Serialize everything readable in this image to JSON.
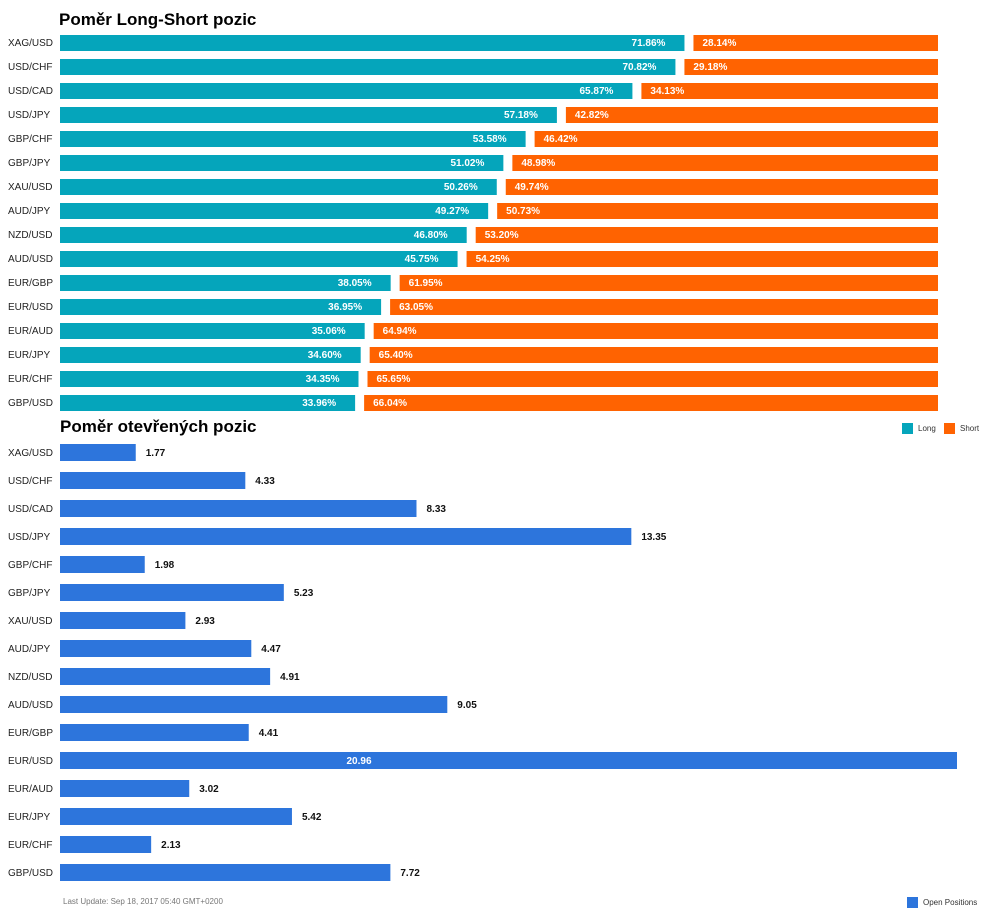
{
  "colors": {
    "long": "#05a5bb",
    "short": "#ff6301",
    "open": "#2d75dc"
  },
  "chart_data": [
    {
      "type": "bar",
      "orientation": "horizontal",
      "stacked": true,
      "title": "Poměr Long-Short pozic",
      "categories": [
        "XAG/USD",
        "USD/CHF",
        "USD/CAD",
        "USD/JPY",
        "GBP/CHF",
        "GBP/JPY",
        "XAU/USD",
        "AUD/JPY",
        "NZD/USD",
        "AUD/USD",
        "EUR/GBP",
        "EUR/USD",
        "EUR/AUD",
        "EUR/JPY",
        "EUR/CHF",
        "GBP/USD"
      ],
      "series": [
        {
          "name": "Long",
          "values": [
            71.86,
            70.82,
            65.87,
            57.18,
            53.58,
            51.02,
            50.26,
            49.27,
            46.8,
            45.75,
            38.05,
            36.95,
            35.06,
            34.6,
            34.35,
            33.96
          ],
          "labels": [
            "71.86%",
            "70.82%",
            "65.87%",
            "57.18%",
            "53.58%",
            "51.02%",
            "50.26%",
            "49.27%",
            "46.80%",
            "45.75%",
            "38.05%",
            "36.95%",
            "35.06%",
            "34.60%",
            "34.35%",
            "33.96%"
          ]
        },
        {
          "name": "Short",
          "values": [
            28.14,
            29.18,
            34.13,
            42.82,
            46.42,
            48.98,
            49.74,
            50.73,
            53.2,
            54.25,
            61.95,
            63.05,
            64.94,
            65.4,
            65.65,
            66.04
          ],
          "labels": [
            "28.14%",
            "29.18%",
            "34.13%",
            "42.82%",
            "46.42%",
            "48.98%",
            "49.74%",
            "50.73%",
            "53.20%",
            "54.25%",
            "61.95%",
            "63.05%",
            "64.94%",
            "65.40%",
            "65.65%",
            "66.04%"
          ]
        }
      ],
      "xlim": [
        0,
        100
      ],
      "legend": "bottom-right"
    },
    {
      "type": "bar",
      "orientation": "horizontal",
      "title": "Poměr otevřených pozic",
      "categories": [
        "XAG/USD",
        "USD/CHF",
        "USD/CAD",
        "USD/JPY",
        "GBP/CHF",
        "GBP/JPY",
        "XAU/USD",
        "AUD/JPY",
        "NZD/USD",
        "AUD/USD",
        "EUR/GBP",
        "EUR/USD",
        "EUR/AUD",
        "EUR/JPY",
        "EUR/CHF",
        "GBP/USD"
      ],
      "series": [
        {
          "name": "Open Positions",
          "values": [
            1.77,
            4.33,
            8.33,
            13.35,
            1.98,
            5.23,
            2.93,
            4.47,
            4.91,
            9.05,
            4.41,
            20.96,
            3.02,
            5.42,
            2.13,
            7.72
          ],
          "labels": [
            "1.77",
            "4.33",
            "8.33",
            "13.35",
            "1.98",
            "5.23",
            "2.93",
            "4.47",
            "4.91",
            "9.05",
            "4.41",
            "20.96",
            "3.02",
            "5.42",
            "2.13",
            "7.72"
          ]
        }
      ],
      "xlim": [
        0,
        20.96
      ],
      "legend": "bottom-right"
    }
  ],
  "legend1": {
    "long": "Long",
    "short": "Short"
  },
  "legend2": {
    "open": "Open Positions"
  },
  "footer": {
    "last_update": "Last Update: Sep 18, 2017 05:40 GMT+0200"
  }
}
